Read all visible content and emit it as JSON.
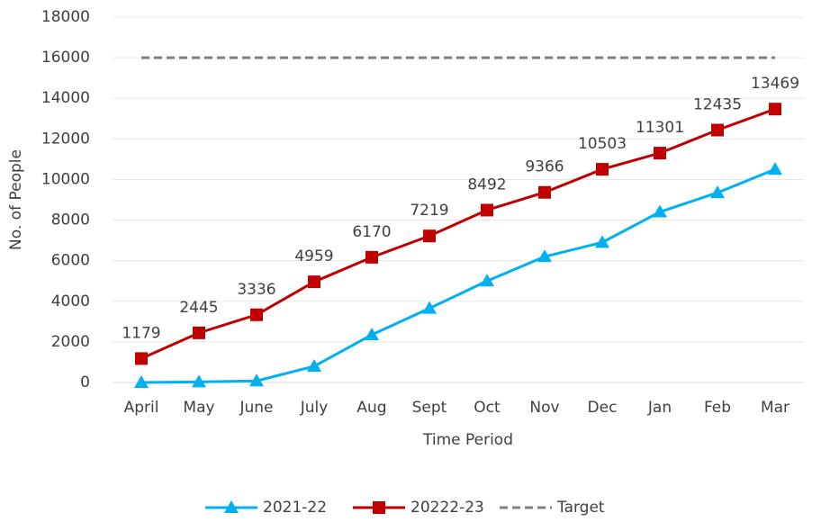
{
  "chart_data": {
    "type": "line",
    "x_label": "Time Period",
    "y_label": "No. of People",
    "categories": [
      "April",
      "May",
      "June",
      "July",
      "Aug",
      "Sept",
      "Oct",
      "Nov",
      "Dec",
      "Jan",
      "Feb",
      "Mar"
    ],
    "series": [
      {
        "name": "2021-22",
        "color": "#00b0f0",
        "marker": "triangle",
        "dashed": false,
        "show_labels": false,
        "values": [
          0,
          30,
          80,
          800,
          2350,
          3650,
          5000,
          6200,
          6900,
          8400,
          9350,
          10500
        ]
      },
      {
        "name": "20222-23",
        "color": "#c00000",
        "marker": "square",
        "dashed": false,
        "show_labels": true,
        "values": [
          1179,
          2445,
          3336,
          4959,
          6170,
          7219,
          8492,
          9366,
          10503,
          11301,
          12435,
          13469
        ]
      },
      {
        "name": "Target",
        "color": "#7f7f7f",
        "marker": "none",
        "dashed": true,
        "show_labels": false,
        "values": [
          16000,
          16000,
          16000,
          16000,
          16000,
          16000,
          16000,
          16000,
          16000,
          16000,
          16000,
          16000
        ]
      }
    ],
    "ylim": [
      0,
      18000
    ],
    "yticks": [
      0,
      2000,
      4000,
      6000,
      8000,
      10000,
      12000,
      14000,
      16000,
      18000
    ],
    "grid": true,
    "legend": "bottom"
  }
}
